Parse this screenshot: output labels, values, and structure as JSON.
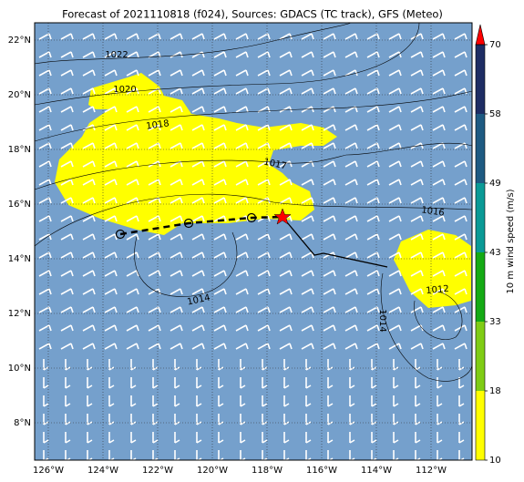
{
  "title": "Forecast of 2021110818 (f024), Sources: GDACS (TC track), GFS (Meteo)",
  "lon_ticks": [
    {
      "value": 126,
      "label": "126°W"
    },
    {
      "value": 124,
      "label": "124°W"
    },
    {
      "value": 122,
      "label": "122°W"
    },
    {
      "value": 120,
      "label": "120°W"
    },
    {
      "value": 118,
      "label": "118°W"
    },
    {
      "value": 116,
      "label": "116°W"
    },
    {
      "value": 114,
      "label": "114°W"
    },
    {
      "value": 112,
      "label": "112°W"
    }
  ],
  "lat_ticks": [
    {
      "value": 22,
      "label": "22°N"
    },
    {
      "value": 20,
      "label": "20°N"
    },
    {
      "value": 18,
      "label": "18°N"
    },
    {
      "value": 16,
      "label": "16°N"
    },
    {
      "value": 14,
      "label": "14°N"
    },
    {
      "value": 12,
      "label": "12°N"
    },
    {
      "value": 10,
      "label": "10°N"
    },
    {
      "value": 8,
      "label": "8°N"
    }
  ],
  "isobar_labels": [
    "1022",
    "1020",
    "1018",
    "1017",
    "1016",
    "1014",
    "1014",
    "1012"
  ],
  "colorbar": {
    "label": "10 m wind speed (m/s)",
    "ticks": [
      10,
      18,
      33,
      43,
      49,
      58,
      70
    ],
    "colors": [
      "#ffff00",
      "#7fcc14",
      "#14aa14",
      "#0a9a96",
      "#1e5a82",
      "#1e2d64"
    ],
    "extend_color": "#ff0000"
  }
}
